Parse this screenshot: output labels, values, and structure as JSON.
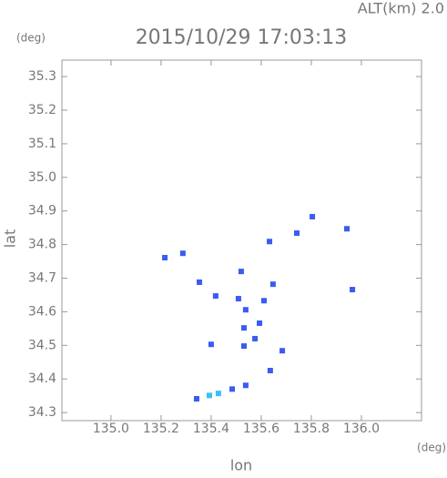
{
  "chart_data": {
    "type": "scatter",
    "title": "2015/10/29 17:03:13",
    "altitude_label": "ALT(km) 2.0",
    "y_unit": "(deg)",
    "x_unit": "(deg)",
    "ylabel": "lat",
    "xlabel": "lon",
    "xlim": [
      134.804,
      136.24
    ],
    "ylim": [
      34.276,
      35.349
    ],
    "xticks": [
      {
        "value": 135.0,
        "label": "135.0"
      },
      135.2,
      135.4,
      135.6,
      135.8,
      {
        "value": 136.0,
        "label": "136.0"
      }
    ],
    "yticks": [
      34.3,
      34.4,
      34.5,
      34.6,
      34.7,
      34.8,
      34.9,
      {
        "value": 35.0,
        "label": "35.0"
      },
      35.1,
      35.2,
      35.3
    ],
    "series": [
      {
        "color": "#3a5cf0",
        "x": [
          135.215,
          135.287,
          135.353,
          135.418,
          135.4,
          135.52,
          135.509,
          135.538,
          135.531,
          135.531,
          135.575,
          135.593,
          135.611,
          135.647,
          135.633,
          135.742,
          135.804,
          135.942,
          135.964,
          135.684,
          135.636,
          135.538,
          135.484,
          135.342
        ],
        "values": [
          34.761,
          34.774,
          34.688,
          34.647,
          34.503,
          34.72,
          34.639,
          34.606,
          34.552,
          34.498,
          34.52,
          34.566,
          34.633,
          34.682,
          34.809,
          34.834,
          34.883,
          34.847,
          34.666,
          34.484,
          34.425,
          34.381,
          34.37,
          34.341
        ]
      },
      {
        "color": "#3cc0ee",
        "x": [
          135.429,
          135.393
        ],
        "values": [
          34.357,
          34.351
        ]
      }
    ]
  }
}
